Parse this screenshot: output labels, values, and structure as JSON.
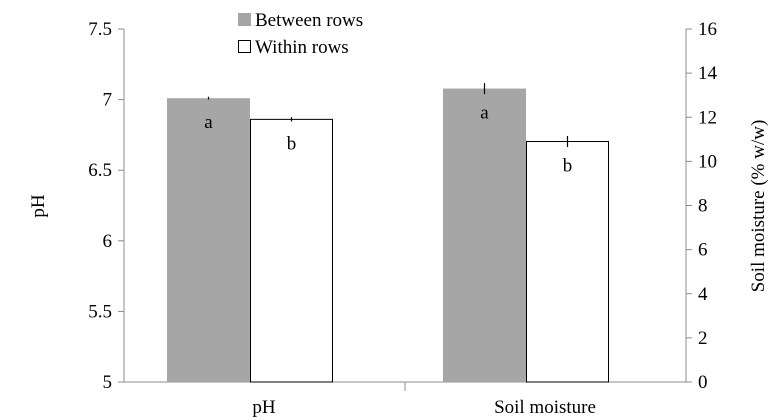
{
  "chart_data": {
    "type": "bar",
    "categories": [
      "pH",
      "Soil moisture"
    ],
    "series": [
      {
        "name": "Between rows",
        "color": "#a6a6a6",
        "values": [
          7.01,
          13.3
        ],
        "errors": [
          0.01,
          0.25
        ],
        "letters": [
          "a",
          "a"
        ]
      },
      {
        "name": "Within rows",
        "color": "#ffffff",
        "values": [
          6.86,
          10.9
        ],
        "errors": [
          0.015,
          0.25
        ],
        "letters": [
          "b",
          "b"
        ]
      }
    ],
    "axes": {
      "y_left": {
        "label": "pH",
        "range": [
          5,
          7.5
        ],
        "ticks": [
          "5",
          "5.5",
          "6",
          "6.5",
          "7",
          "7.5"
        ],
        "applies_to": "pH"
      },
      "y_right": {
        "label": "Soil moisture (% w/w)",
        "range": [
          0,
          16
        ],
        "ticks": [
          "0",
          "2",
          "4",
          "6",
          "8",
          "10",
          "12",
          "14",
          "16"
        ],
        "applies_to": "Soil moisture"
      }
    },
    "grid": false,
    "legend_position": "top-center"
  }
}
